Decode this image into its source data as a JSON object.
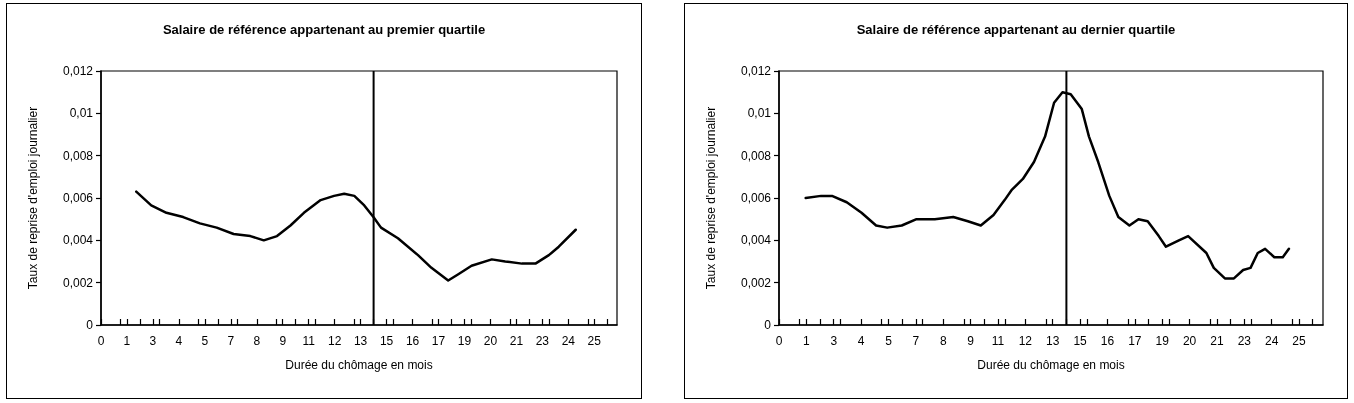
{
  "chart_data": [
    {
      "type": "line",
      "title": "Salaire de référence appartenant au premier quartile",
      "xlabel": "Durée du chômage en mois",
      "ylabel": "Taux de reprise d'emploi journalier",
      "x": [
        1.81,
        2.58,
        3.36,
        4.22,
        5.08,
        5.94,
        6.81,
        7.67,
        8.36,
        9.04,
        9.73,
        10.42,
        11.28,
        11.97,
        12.49,
        13.01,
        13.52,
        13.99,
        14.38,
        15.25,
        16.28,
        16.97,
        17.83,
        18.35,
        19.03,
        20.07,
        20.76,
        21.62,
        22.31,
        23.0,
        23.51,
        24.38
      ],
      "series": [
        {
          "color": "#000000",
          "values": [
            0.0063,
            0.00565,
            0.0053,
            0.0051,
            0.0048,
            0.0046,
            0.0043,
            0.0042,
            0.004,
            0.0042,
            0.0047,
            0.0053,
            0.0059,
            0.0061,
            0.0062,
            0.0061,
            0.00565,
            0.0051,
            0.0046,
            0.0041,
            0.0033,
            0.0027,
            0.0021,
            0.0024,
            0.0028,
            0.0031,
            0.003,
            0.0029,
            0.0029,
            0.0033,
            0.0037,
            0.0045
          ]
        }
      ],
      "xlim": [
        0,
        26.5
      ],
      "xticks": [
        0,
        {
          "value": 1,
          "label": null
        },
        {
          "value": 1.333,
          "label": "1"
        },
        {
          "value": 2,
          "label": null
        },
        {
          "value": 2.667,
          "label": "3"
        },
        {
          "value": 3,
          "label": null
        },
        4,
        {
          "value": 5,
          "label": null
        },
        {
          "value": 5.333,
          "label": "5"
        },
        {
          "value": 6,
          "label": null
        },
        {
          "value": 6.667,
          "label": "7"
        },
        {
          "value": 7,
          "label": null
        },
        8,
        {
          "value": 9,
          "label": null
        },
        {
          "value": 9.333,
          "label": "9"
        },
        {
          "value": 10,
          "label": null
        },
        {
          "value": 10.667,
          "label": "11"
        },
        {
          "value": 11,
          "label": null
        },
        12,
        {
          "value": 13,
          "label": null
        },
        {
          "value": 13.333,
          "label": "13"
        },
        {
          "value": 14,
          "label": null
        },
        {
          "value": 14.667,
          "label": "15"
        },
        {
          "value": 15,
          "label": null
        },
        16,
        {
          "value": 17,
          "label": null
        },
        {
          "value": 17.333,
          "label": "17"
        },
        {
          "value": 18,
          "label": null
        },
        {
          "value": 18.667,
          "label": "19"
        },
        {
          "value": 19,
          "label": null
        },
        20,
        {
          "value": 21,
          "label": null
        },
        {
          "value": 21.333,
          "label": "21"
        },
        {
          "value": 22,
          "label": null
        },
        {
          "value": 22.667,
          "label": "23"
        },
        {
          "value": 23,
          "label": null
        },
        24,
        {
          "value": 25,
          "label": null
        },
        {
          "value": 25.333,
          "label": "25"
        },
        {
          "value": 26,
          "label": null
        }
      ],
      "ylim": [
        0,
        0.012
      ],
      "yticks": [
        0,
        {
          "value": 0.002,
          "label": "0,002"
        },
        {
          "value": 0.004,
          "label": "0,004"
        },
        {
          "value": 0.006,
          "label": "0,006"
        },
        {
          "value": 0.008,
          "label": "0,008"
        },
        {
          "value": 0.01,
          "label": "0,01"
        },
        {
          "value": 0.012,
          "label": "0,012"
        }
      ],
      "ref_lines": [
        {
          "axis": "x",
          "value": 14,
          "color": "#000000"
        }
      ],
      "grid": false
    },
    {
      "type": "line",
      "title": "Salaire de référence appartenant au dernier quartile",
      "xlabel": "Durée du chômage en mois",
      "ylabel": "Taux de reprise d'emploi journalier",
      "x": [
        1.3,
        2.05,
        2.58,
        3.3,
        4.02,
        4.73,
        5.27,
        5.98,
        6.7,
        7.59,
        8.49,
        9.2,
        9.83,
        10.45,
        10.99,
        11.35,
        11.88,
        12.42,
        12.78,
        12.96,
        13.4,
        13.81,
        14.21,
        14.75,
        15.1,
        15.55,
        16.09,
        16.53,
        17.07,
        17.51,
        17.96,
        18.5,
        18.85,
        19.48,
        19.93,
        20.82,
        21.18,
        21.72,
        22.16,
        22.61,
        22.97,
        23.32,
        23.68,
        24.13,
        24.54,
        24.84
      ],
      "series": [
        {
          "color": "#000000",
          "values": [
            0.006,
            0.0061,
            0.0061,
            0.0058,
            0.0053,
            0.0047,
            0.0046,
            0.0047,
            0.005,
            0.005,
            0.0051,
            0.0049,
            0.0047,
            0.0052,
            0.0059,
            0.0064,
            0.0069,
            0.0077,
            0.0085,
            0.0089,
            0.0105,
            0.011,
            0.0109,
            0.0102,
            0.0089,
            0.0077,
            0.0061,
            0.0051,
            0.0047,
            0.005,
            0.0049,
            0.0042,
            0.0037,
            0.004,
            0.0042,
            0.0034,
            0.0027,
            0.0022,
            0.0022,
            0.0026,
            0.0027,
            0.0034,
            0.0036,
            0.0032,
            0.0032,
            0.0036
          ]
        }
      ],
      "xlim": [
        0,
        26.5
      ],
      "xticks": [
        0,
        {
          "value": 1,
          "label": null
        },
        {
          "value": 1.333,
          "label": "1"
        },
        {
          "value": 2,
          "label": null
        },
        {
          "value": 2.667,
          "label": "3"
        },
        {
          "value": 3,
          "label": null
        },
        4,
        {
          "value": 5,
          "label": null
        },
        {
          "value": 5.333,
          "label": "5"
        },
        {
          "value": 6,
          "label": null
        },
        {
          "value": 6.667,
          "label": "7"
        },
        {
          "value": 7,
          "label": null
        },
        8,
        {
          "value": 9,
          "label": null
        },
        {
          "value": 9.333,
          "label": "9"
        },
        {
          "value": 10,
          "label": null
        },
        {
          "value": 10.667,
          "label": "11"
        },
        {
          "value": 11,
          "label": null
        },
        12,
        {
          "value": 13,
          "label": null
        },
        {
          "value": 13.333,
          "label": "13"
        },
        {
          "value": 14,
          "label": null
        },
        {
          "value": 14.667,
          "label": "15"
        },
        {
          "value": 15,
          "label": null
        },
        16,
        {
          "value": 17,
          "label": null
        },
        {
          "value": 17.333,
          "label": "17"
        },
        {
          "value": 18,
          "label": null
        },
        {
          "value": 18.667,
          "label": "19"
        },
        {
          "value": 19,
          "label": null
        },
        20,
        {
          "value": 21,
          "label": null
        },
        {
          "value": 21.333,
          "label": "21"
        },
        {
          "value": 22,
          "label": null
        },
        {
          "value": 22.667,
          "label": "23"
        },
        {
          "value": 23,
          "label": null
        },
        24,
        {
          "value": 25,
          "label": null
        },
        {
          "value": 25.333,
          "label": "25"
        },
        {
          "value": 26,
          "label": null
        }
      ],
      "ylim": [
        0,
        0.012
      ],
      "yticks": [
        0,
        {
          "value": 0.002,
          "label": "0,002"
        },
        {
          "value": 0.004,
          "label": "0,004"
        },
        {
          "value": 0.006,
          "label": "0,006"
        },
        {
          "value": 0.008,
          "label": "0,008"
        },
        {
          "value": 0.01,
          "label": "0,01"
        },
        {
          "value": 0.012,
          "label": "0,012"
        }
      ],
      "ref_lines": [
        {
          "axis": "x",
          "value": 14,
          "color": "#000000"
        }
      ],
      "grid": false
    }
  ]
}
